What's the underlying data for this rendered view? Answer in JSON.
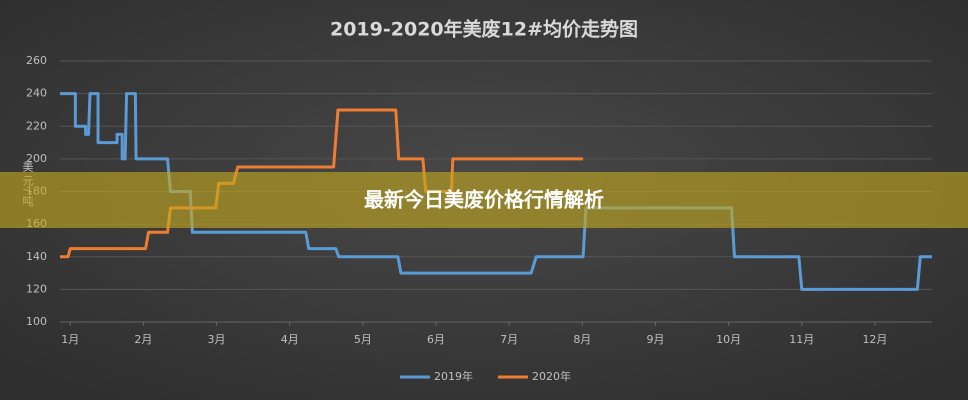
{
  "chart_data": {
    "type": "line",
    "title": "2019-2020年美废12#均价走势图",
    "y_label": "美元/吨",
    "xlim": [
      0.86,
      12.78
    ],
    "xticks": [
      {
        "value": 1,
        "label": "1月"
      },
      {
        "value": 2,
        "label": "2月"
      },
      {
        "value": 3,
        "label": "3月"
      },
      {
        "value": 4,
        "label": "4月"
      },
      {
        "value": 5,
        "label": "5月"
      },
      {
        "value": 6,
        "label": "6月"
      },
      {
        "value": 7,
        "label": "7月"
      },
      {
        "value": 8,
        "label": "8月"
      },
      {
        "value": 9,
        "label": "9月"
      },
      {
        "value": 10,
        "label": "10月"
      },
      {
        "value": 11,
        "label": "11月"
      },
      {
        "value": 12,
        "label": "12月"
      }
    ],
    "ylim": [
      100,
      260
    ],
    "yticks": [
      100,
      120,
      140,
      160,
      180,
      200,
      220,
      240,
      260
    ],
    "grid": true,
    "series": [
      {
        "name": "2019年",
        "color": "#5b9bd5",
        "x": [
          0.86,
          1.07,
          1.07,
          1.21,
          1.21,
          1.25,
          1.27,
          1.38,
          1.38,
          1.64,
          1.64,
          1.71,
          1.71,
          1.75,
          1.77,
          1.89,
          1.9,
          2.33,
          2.37,
          2.64,
          2.67,
          4.22,
          4.26,
          4.63,
          4.67,
          5.48,
          5.52,
          7.3,
          7.37,
          8.01,
          8.05,
          10.04,
          10.08,
          10.96,
          11.0,
          12.58,
          12.62,
          12.78
        ],
        "values": [
          240,
          240,
          220,
          220,
          215,
          215,
          240,
          240,
          210,
          210,
          215,
          215,
          200,
          200,
          240,
          240,
          200,
          200,
          180,
          180,
          155,
          155,
          145,
          145,
          140,
          140,
          130,
          130,
          140,
          140,
          170,
          170,
          140,
          140,
          120,
          120,
          140,
          140
        ]
      },
      {
        "name": "2020年",
        "color": "#ed7d31",
        "x": [
          0.86,
          0.97,
          1.0,
          2.03,
          2.07,
          2.33,
          2.37,
          2.99,
          3.03,
          3.23,
          3.29,
          4.6,
          4.66,
          5.45,
          5.49,
          5.82,
          5.86,
          6.21,
          6.23,
          8.01
        ],
        "values": [
          140,
          140,
          145,
          145,
          155,
          155,
          170,
          170,
          185,
          185,
          195,
          195,
          230,
          230,
          200,
          200,
          180,
          180,
          200,
          200
        ]
      }
    ]
  },
  "banner": {
    "title": "最新今日美废价格行情解析"
  }
}
